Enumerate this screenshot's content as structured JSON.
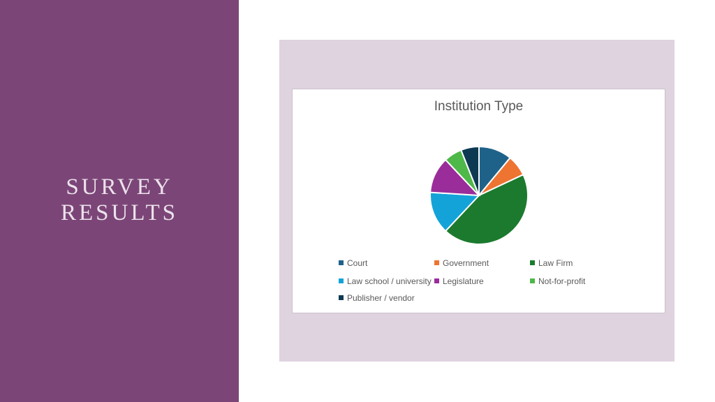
{
  "slide": {
    "title_lines": [
      "SURVEY",
      "RESULTS"
    ]
  },
  "chart_data": {
    "type": "pie",
    "title": "Institution Type",
    "categories": [
      "Court",
      "Government",
      "Law Firm",
      "Law school / university",
      "Legislature",
      "Not-for-profit",
      "Publisher / vendor"
    ],
    "values": [
      11,
      7,
      44,
      14,
      12,
      6,
      6
    ],
    "unit": "percent (estimated)",
    "colors": [
      "#1f6289",
      "#ee7431",
      "#1c7a2e",
      "#14a3d8",
      "#9a2d9a",
      "#4eb848",
      "#0d3a52"
    ],
    "legend_position": "bottom"
  }
}
